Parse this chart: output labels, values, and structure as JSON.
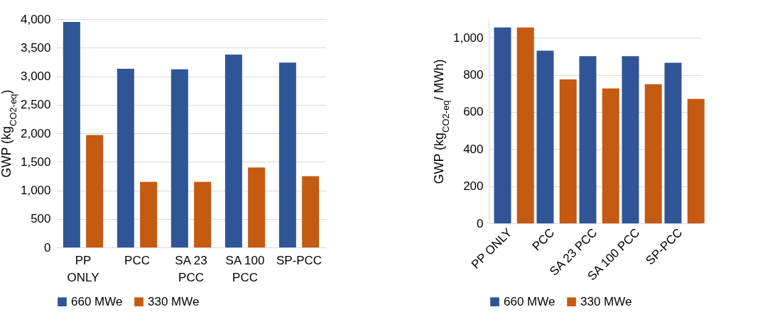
{
  "chart_data": [
    {
      "type": "bar",
      "ylabel": "GWP (kg$_{CO2-eq}$)",
      "categories": [
        "PP ONLY",
        "PCC",
        "SA 23 PCC",
        "SA 100 PCC",
        "SP-PCC"
      ],
      "series": [
        {
          "name": "660 MWe",
          "color": "#2f5597",
          "values": [
            3950,
            3130,
            3120,
            3380,
            3240
          ]
        },
        {
          "name": "330 MWe",
          "color": "#c55a11",
          "values": [
            1970,
            1150,
            1150,
            1400,
            1250
          ]
        }
      ],
      "ylim": [
        0,
        4000
      ],
      "yticks": [
        0,
        500,
        {
          "value": 1000,
          "label": "1,000"
        },
        {
          "value": 1500,
          "label": "1,500"
        },
        {
          "value": 2000,
          "label": "2,000"
        },
        {
          "value": 2500,
          "label": "2,500"
        },
        {
          "value": 3000,
          "label": "3,000"
        },
        {
          "value": 3500,
          "label": "3,500"
        },
        {
          "value": 4000,
          "label": "4,000"
        }
      ],
      "grid": "y",
      "legend": "bottom"
    },
    {
      "type": "bar",
      "ylabel": "GWP (kg$_{CO2-eq}$/ MWh)",
      "categories": [
        "PP ONLY",
        "PCC",
        "SA 23 PCC",
        "SA 100 PCC",
        "SP-PCC"
      ],
      "series": [
        {
          "name": "660 MWe",
          "color": "#2f5597",
          "values": [
            1055,
            930,
            900,
            900,
            865
          ]
        },
        {
          "name": "330 MWe",
          "color": "#c55a11",
          "values": [
            1055,
            775,
            727,
            750,
            670
          ]
        }
      ],
      "ylim": [
        0,
        1100
      ],
      "yticks": [
        0,
        200,
        400,
        600,
        800,
        {
          "value": 1000,
          "label": "1,000"
        }
      ],
      "grid": "y",
      "legend": "bottom"
    }
  ]
}
